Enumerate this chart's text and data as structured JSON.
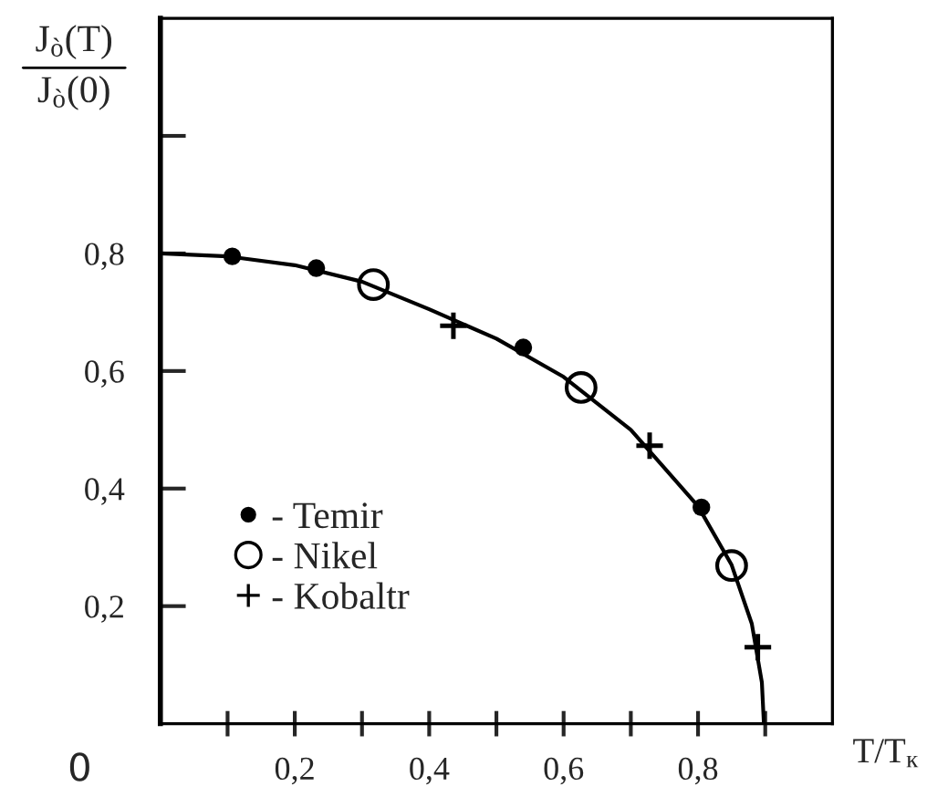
{
  "chart_data": {
    "type": "scatter",
    "ylabel": "J$_{ò}$(T)\nJ$_{ò}$(0)",
    "xlabel": "T/T$_{к}$",
    "annotations": [
      "0"
    ],
    "xlim": [
      0,
      1.0
    ],
    "xticks": [
      {
        "value": 0.1,
        "label": null
      },
      {
        "value": 0.2,
        "label": "0,2"
      },
      {
        "value": 0.3,
        "label": null
      },
      {
        "value": 0.4,
        "label": "0,4"
      },
      {
        "value": 0.5,
        "label": null
      },
      {
        "value": 0.6,
        "label": "0,6"
      },
      {
        "value": 0.7,
        "label": null
      },
      {
        "value": 0.8,
        "label": "0,8"
      },
      {
        "value": 0.9,
        "label": null
      }
    ],
    "ylim": [
      0,
      1.2
    ],
    "yticks": [
      {
        "value": 0.2,
        "label": "0,2"
      },
      {
        "value": 0.4,
        "label": "0,4"
      },
      {
        "value": 0.6,
        "label": "0,6"
      },
      {
        "value": 0.8,
        "label": "0,8"
      },
      {
        "value": 1.0,
        "label": null
      }
    ],
    "grid": false,
    "legend": "bottom left",
    "series": [
      {
        "type": "line",
        "color": "#000000",
        "marker": "none",
        "line_style": "solid",
        "x": [
          0,
          0.1,
          0.2,
          0.3,
          0.4,
          0.5,
          0.6,
          0.7,
          0.8,
          0.85,
          0.88,
          0.895,
          0.898
        ],
        "values": [
          0.8,
          0.795,
          0.78,
          0.752,
          0.705,
          0.655,
          0.59,
          0.5,
          0.37,
          0.27,
          0.17,
          0.07,
          0.0
        ]
      },
      {
        "name": "- Temir",
        "color": "#000000",
        "marker": "circle",
        "x": [
          0.107,
          0.232,
          0.54,
          0.805
        ],
        "values": [
          0.795,
          0.775,
          0.64,
          0.368
        ]
      },
      {
        "name": "- Nikel",
        "type": "bubble",
        "color": "#000000",
        "marker": "circle",
        "x": [
          0.317,
          0.626,
          0.85
        ],
        "values": [
          0.747,
          0.572,
          0.269
        ],
        "sizes": [
          1,
          1,
          1
        ]
      },
      {
        "name": "- Kobaltr",
        "color": "#000000",
        "marker": "cross",
        "x": [
          0.436,
          0.728,
          0.889
        ],
        "values": [
          0.677,
          0.473,
          0.13
        ]
      }
    ]
  }
}
